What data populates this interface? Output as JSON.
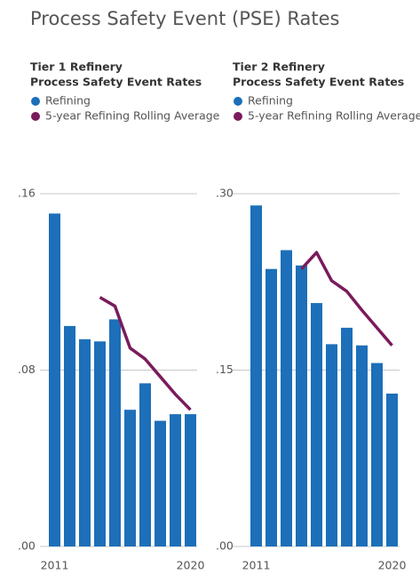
{
  "title": "Process Safety Event (PSE) Rates",
  "chart_data": [
    {
      "type": "bar",
      "title": [
        "Tier 1 Refinery",
        "Process Safety Event Rates"
      ],
      "categories": [
        "2011",
        null,
        null,
        null,
        null,
        null,
        null,
        null,
        null,
        "2020"
      ],
      "series": [
        {
          "name": "Refining",
          "color": "#1c6fb8",
          "values": [
            0.151,
            0.1,
            0.094,
            0.093,
            0.103,
            0.062,
            0.074,
            0.057,
            0.06,
            0.06
          ]
        },
        {
          "name": "5-year Refining Rolling Average",
          "color": "#7a1b5c",
          "type": "line",
          "values": [
            null,
            null,
            null,
            0.113,
            0.109,
            0.09,
            0.085,
            0.077,
            0.069,
            0.062
          ]
        }
      ],
      "ylim": [
        0,
        0.16
      ],
      "yticks": [
        {
          "value": 0,
          "label": ".00"
        },
        {
          "value": 0.08,
          "label": ".08"
        },
        {
          "value": 0.16,
          "label": ".16"
        }
      ],
      "grid": true
    },
    {
      "type": "bar",
      "title": [
        "Tier 2 Refinery",
        "Process Safety Event Rates"
      ],
      "categories": [
        "2011",
        null,
        null,
        null,
        null,
        null,
        null,
        null,
        null,
        "2020"
      ],
      "series": [
        {
          "name": "Refining",
          "color": "#1c6fb8",
          "values": [
            0.29,
            0.236,
            0.252,
            0.239,
            0.207,
            0.172,
            0.186,
            0.171,
            0.156,
            0.13
          ]
        },
        {
          "name": "5-year Refining Rolling Average",
          "color": "#7a1b5c",
          "type": "line",
          "values": [
            null,
            null,
            null,
            0.236,
            0.25,
            0.226,
            0.217,
            0.201,
            0.186,
            0.171
          ]
        }
      ],
      "ylim": [
        0,
        0.3
      ],
      "yticks": [
        {
          "value": 0,
          "label": ".00"
        },
        {
          "value": 0.15,
          "label": ".15"
        },
        {
          "value": 0.3,
          "label": ".30"
        }
      ],
      "grid": true
    }
  ]
}
